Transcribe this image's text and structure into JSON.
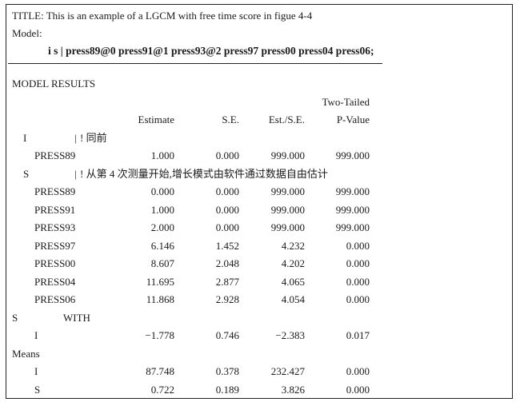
{
  "title_line": "TITLE: This is an example of a LGCM with free time score in figue 4-4",
  "model_label": "Model:",
  "model_statement": "i s | press89@0 press91@1 press93@2 press97 press00 press04 press06;",
  "section_heading": "MODEL RESULTS",
  "headers": {
    "two_tailed": "Two-Tailed",
    "estimate": "Estimate",
    "se": "S.E.",
    "est_se": "Est./S.E.",
    "p_value": "P-Value"
  },
  "i_block": {
    "factor": "I",
    "by": "|",
    "comment": "! 同前",
    "rows": [
      {
        "name": "PRESS89",
        "est": "1.000",
        "se": "0.000",
        "ratio": "999.000",
        "p": "999.000"
      }
    ]
  },
  "s_block": {
    "factor": "S",
    "by": "|",
    "comment": "! 从第 4 次测量开始,增长模式由软件通过数据自由估计",
    "rows": [
      {
        "name": "PRESS89",
        "est": "0.000",
        "se": "0.000",
        "ratio": "999.000",
        "p": "999.000"
      },
      {
        "name": "PRESS91",
        "est": "1.000",
        "se": "0.000",
        "ratio": "999.000",
        "p": "999.000"
      },
      {
        "name": "PRESS93",
        "est": "2.000",
        "se": "0.000",
        "ratio": "999.000",
        "p": "999.000"
      },
      {
        "name": "PRESS97",
        "est": "6.146",
        "se": "1.452",
        "ratio": "4.232",
        "p": "0.000"
      },
      {
        "name": "PRESS00",
        "est": "8.607",
        "se": "2.048",
        "ratio": "4.202",
        "p": "0.000"
      },
      {
        "name": "PRESS04",
        "est": "11.695",
        "se": "2.877",
        "ratio": "4.065",
        "p": "0.000"
      },
      {
        "name": "PRESS06",
        "est": "11.868",
        "se": "2.928",
        "ratio": "4.054",
        "p": "0.000"
      }
    ]
  },
  "with_block": {
    "factor": "S",
    "keyword": "WITH",
    "rows": [
      {
        "name": "I",
        "est": "−1.778",
        "se": "0.746",
        "ratio": "−2.383",
        "p": "0.017"
      }
    ]
  },
  "means_block": {
    "label": "Means",
    "rows": [
      {
        "name": "I",
        "est": "87.748",
        "se": "0.378",
        "ratio": "232.427",
        "p": "0.000"
      },
      {
        "name": "S",
        "est": "0.722",
        "se": "0.189",
        "ratio": "3.826",
        "p": "0.000"
      }
    ]
  }
}
